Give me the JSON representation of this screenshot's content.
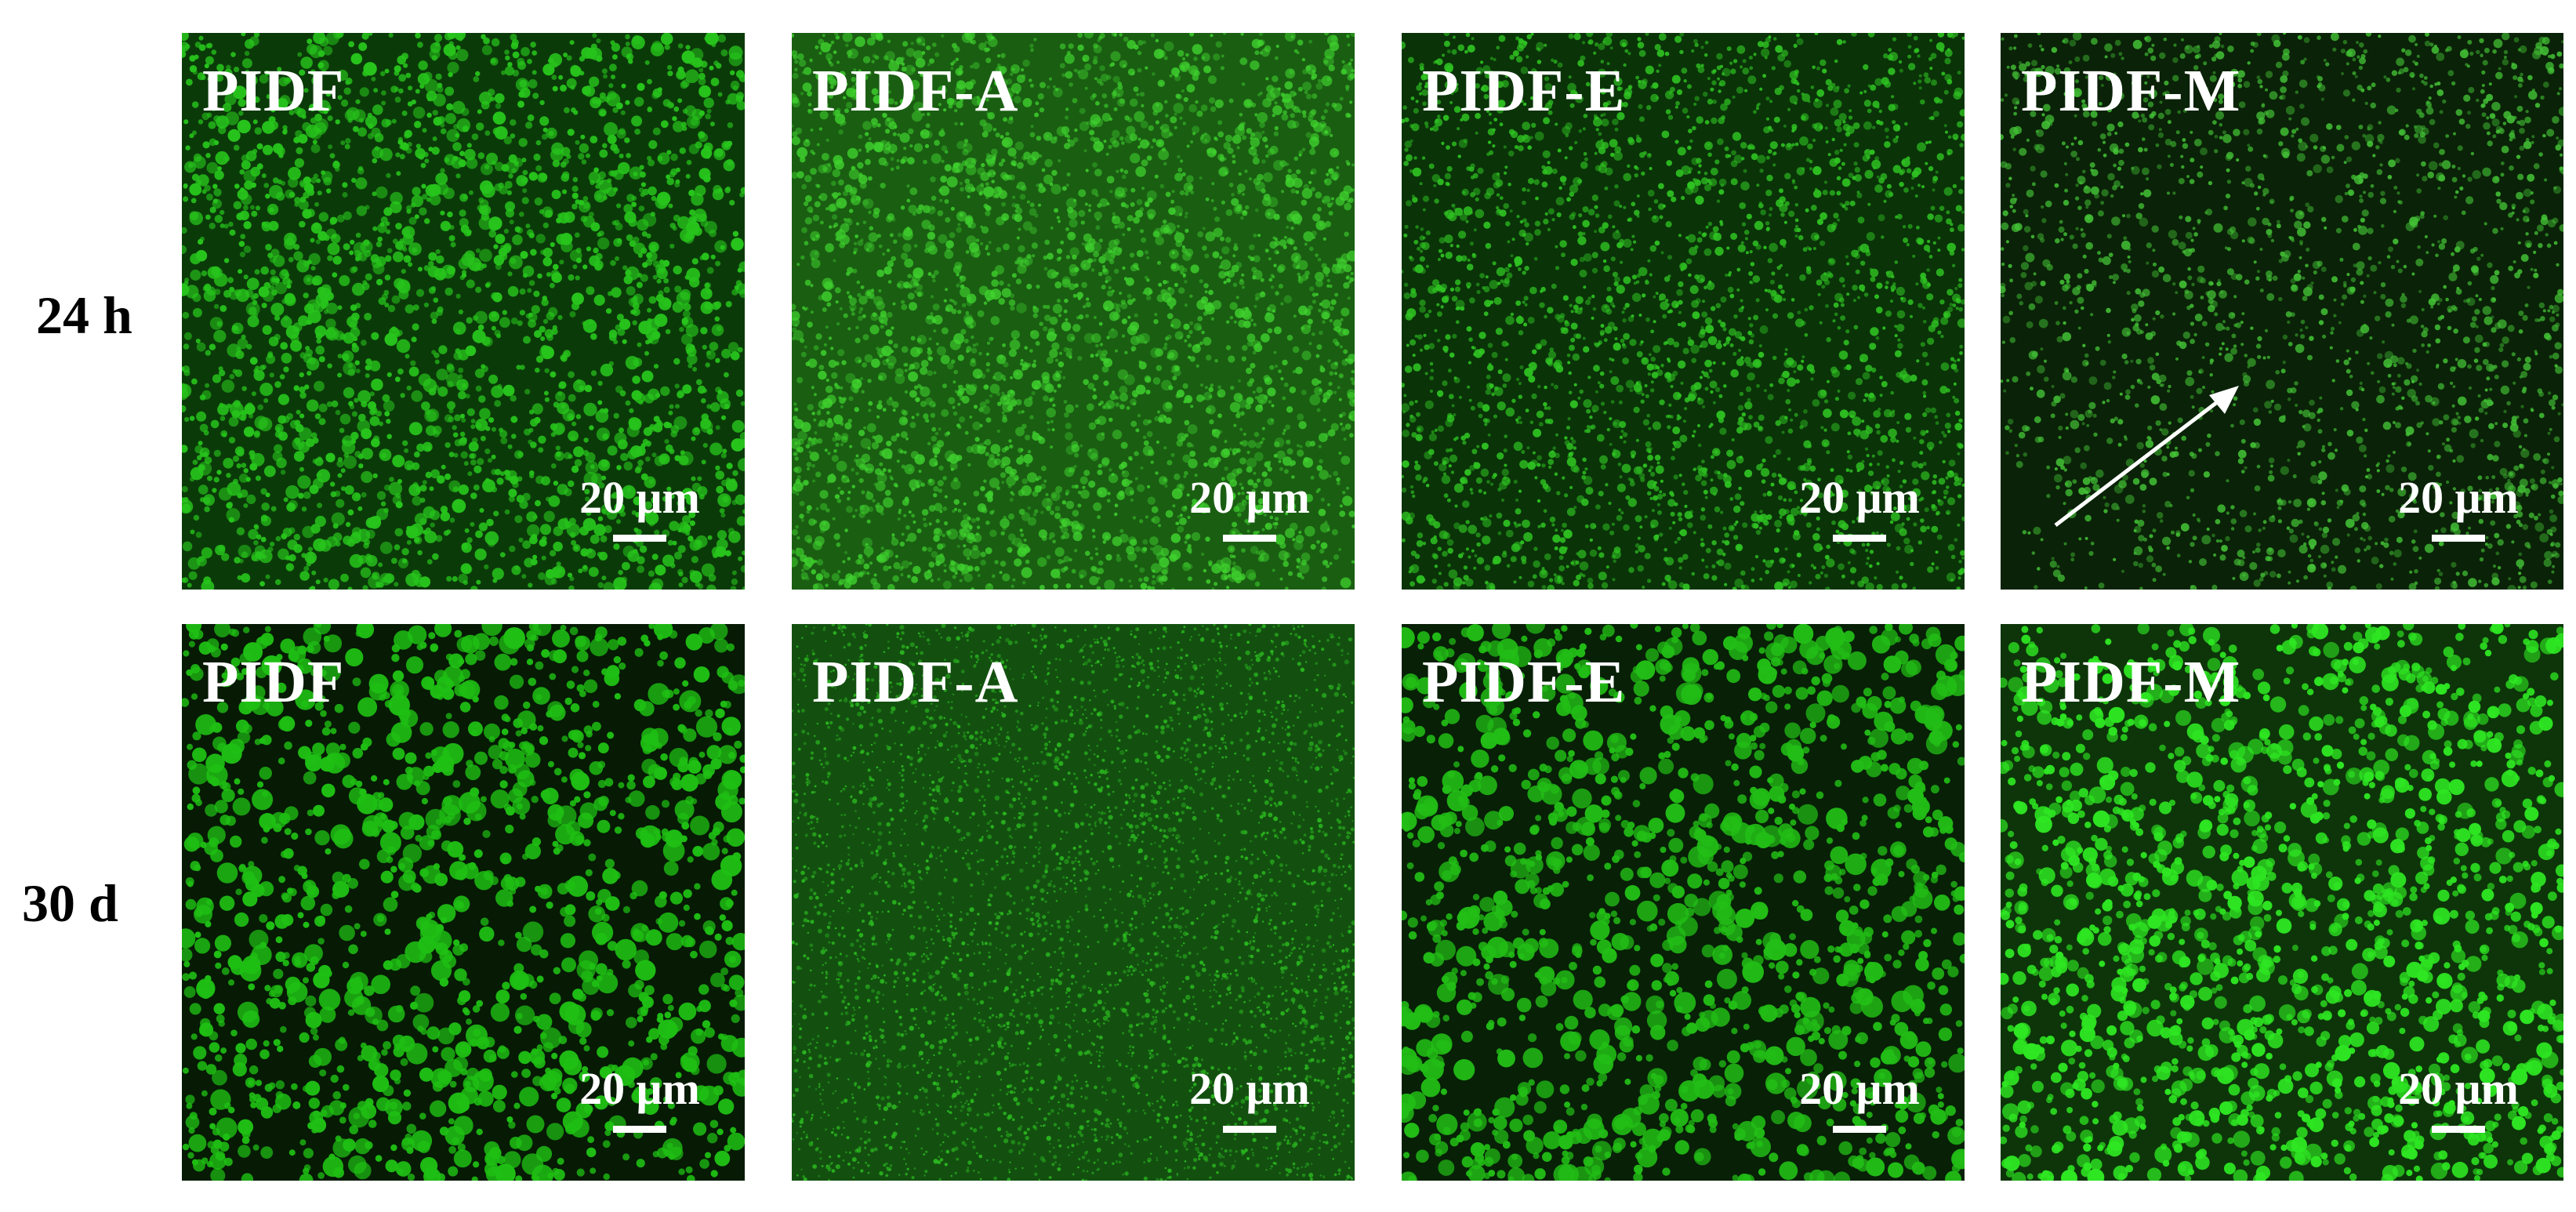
{
  "rows": [
    {
      "label": "24 h"
    },
    {
      "label": "30 d"
    }
  ],
  "panels": [
    {
      "title": "PIDF",
      "scale": "20 μm",
      "bg": "#0b3a09",
      "dot": "#27c41c",
      "style": "droplets-dense"
    },
    {
      "title": "PIDF-A",
      "scale": "20 μm",
      "bg": "#1a5e12",
      "dot": "#3fd22e",
      "style": "network"
    },
    {
      "title": "PIDF-E",
      "scale": "20 μm",
      "bg": "#0a3308",
      "dot": "#2fc422",
      "style": "droplets-fine"
    },
    {
      "title": "PIDF-M",
      "scale": "20 μm",
      "bg": "#0a2207",
      "dot": "#43c236",
      "style": "clusters"
    },
    {
      "title": "PIDF",
      "scale": "20 μm",
      "bg": "#061a04",
      "dot": "#1fbf14",
      "style": "droplets-large"
    },
    {
      "title": "PIDF-A",
      "scale": "20 μm",
      "bg": "#135010",
      "dot": "#2bb81f",
      "style": "speckle"
    },
    {
      "title": "PIDF-E",
      "scale": "20 μm",
      "bg": "#072006",
      "dot": "#22bd16",
      "style": "droplets-large"
    },
    {
      "title": "PIDF-M",
      "scale": "20 μm",
      "bg": "#0d3509",
      "dot": "#2ee622",
      "style": "clusters-bright"
    }
  ],
  "colors": {
    "text_on_image": "#ffffff",
    "row_label": "#000000",
    "arrow": "#ffffff"
  },
  "annotations": {
    "arrow_panel": 3,
    "arrow_icon": "arrow-up-right-icon"
  }
}
